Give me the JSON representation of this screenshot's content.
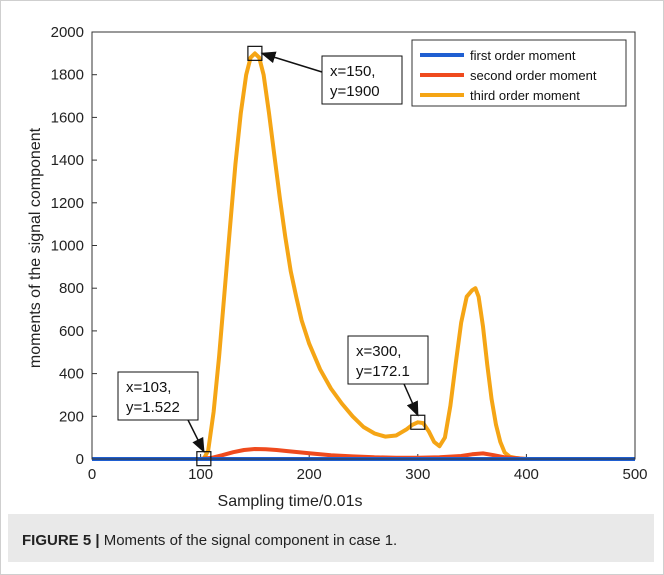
{
  "caption": {
    "label": "FIGURE 5 |",
    "text": "Moments of the signal component in case 1."
  },
  "chart_data": {
    "type": "line",
    "xlabel": "Sampling time/0.01s",
    "ylabel": "moments of the signal component",
    "xlim": [
      0,
      500
    ],
    "ylim": [
      0,
      2000
    ],
    "xticks": [
      0,
      100,
      200,
      300,
      400,
      500
    ],
    "yticks": [
      0,
      200,
      400,
      600,
      800,
      1000,
      1200,
      1400,
      1600,
      1800,
      2000
    ],
    "grid": false,
    "legend_position": "top-right",
    "series": [
      {
        "name": "first order moment",
        "color": "#1f5fd1",
        "x": [
          0,
          100,
          200,
          300,
          400,
          500
        ],
        "y": [
          0,
          0,
          0,
          0,
          0,
          0
        ]
      },
      {
        "name": "second order moment",
        "color": "#ef4a1d",
        "x": [
          0,
          100,
          110,
          120,
          130,
          140,
          150,
          160,
          170,
          180,
          200,
          220,
          240,
          260,
          280,
          300,
          320,
          340,
          350,
          360,
          370,
          380,
          400,
          500
        ],
        "y": [
          0,
          0,
          5,
          18,
          32,
          42,
          47,
          46,
          42,
          37,
          27,
          18,
          12,
          8,
          6,
          6,
          8,
          14,
          22,
          26,
          18,
          8,
          0,
          0
        ]
      },
      {
        "name": "third order moment",
        "color": "#f5a515",
        "x": [
          0,
          100,
          103,
          107,
          112,
          117,
          122,
          127,
          132,
          137,
          142,
          146,
          150,
          154,
          158,
          163,
          168,
          173,
          178,
          183,
          188,
          193,
          200,
          210,
          220,
          230,
          240,
          250,
          260,
          270,
          280,
          285,
          290,
          295,
          300,
          305,
          310,
          315,
          320,
          325,
          330,
          335,
          340,
          345,
          350,
          353,
          356,
          360,
          364,
          368,
          372,
          376,
          380,
          385,
          390,
          395,
          400,
          450,
          500
        ],
        "y": [
          0,
          0,
          2,
          40,
          220,
          480,
          780,
          1080,
          1380,
          1620,
          1800,
          1880,
          1900,
          1880,
          1800,
          1620,
          1420,
          1220,
          1040,
          880,
          760,
          650,
          540,
          420,
          330,
          260,
          200,
          150,
          120,
          105,
          110,
          125,
          140,
          160,
          172,
          168,
          130,
          80,
          60,
          100,
          250,
          450,
          640,
          760,
          790,
          800,
          760,
          620,
          440,
          280,
          160,
          80,
          30,
          10,
          5,
          2,
          0,
          0,
          0
        ]
      }
    ],
    "annotations": [
      {
        "x": 150,
        "y": 1900,
        "line1": "x=150,",
        "line2": "y=1900"
      },
      {
        "x": 300,
        "y": 172.1,
        "line1": "x=300,",
        "line2": "y=172.1"
      },
      {
        "x": 103,
        "y": 1.522,
        "line1": "x=103,",
        "line2": "y=1.522"
      }
    ]
  }
}
